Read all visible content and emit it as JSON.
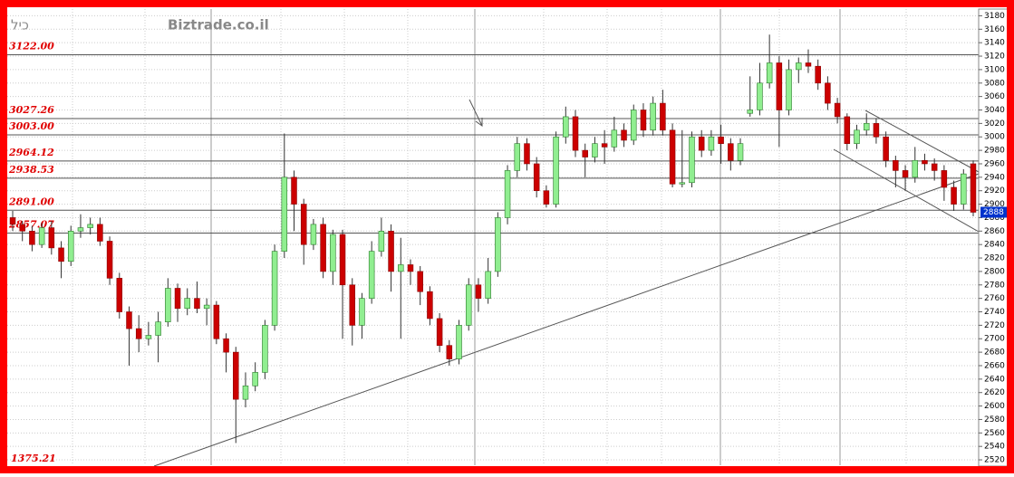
{
  "header": {
    "symbol": "כיל",
    "site": "Biztrade.co.il"
  },
  "chart_data": {
    "type": "candlestick",
    "ylim": [
      2512,
      3190
    ],
    "yticks": [
      2520,
      2540,
      2560,
      2580,
      2600,
      2620,
      2640,
      2660,
      2680,
      2700,
      2720,
      2740,
      2760,
      2780,
      2800,
      2820,
      2840,
      2860,
      2880,
      2900,
      2920,
      2940,
      2960,
      2980,
      3000,
      3020,
      3040,
      3060,
      3080,
      3100,
      3120,
      3140,
      3160,
      3180
    ],
    "grid": true,
    "up_color": "#90ee90",
    "down_color": "#cc0000",
    "levels": [
      {
        "value": 3122,
        "label": "3122.00"
      },
      {
        "value": 3027.26,
        "label": "3027.26"
      },
      {
        "value": 3003,
        "label": "3003.00"
      },
      {
        "value": 2964.12,
        "label": "2964.12"
      },
      {
        "value": 2938.53,
        "label": "2938.53"
      },
      {
        "value": 2891,
        "label": "2891.00"
      },
      {
        "value": 2857.07,
        "label": "2857.07"
      }
    ],
    "bottom_label": "1375.21",
    "last_price": 2888,
    "open": [
      2880,
      2870,
      2860,
      2840,
      2865,
      2835,
      2815,
      2860,
      2865,
      2870,
      2845,
      2790,
      2740,
      2715,
      2700,
      2705,
      2725,
      2775,
      2745,
      2760,
      2745,
      2750,
      2700,
      2680,
      2610,
      2630,
      2650,
      2720,
      2830,
      2940,
      2900,
      2840,
      2870,
      2800,
      2855,
      2780,
      2720,
      2760,
      2830,
      2860,
      2800,
      2810,
      2800,
      2770,
      2730,
      2690,
      2670,
      2720,
      2780,
      2760,
      2800,
      2880,
      2950,
      2990,
      2960,
      2920,
      2900,
      3000,
      3030,
      2980,
      2970,
      2990,
      2985,
      3010,
      2995,
      3040,
      3010,
      3050,
      3010,
      2930,
      2932,
      3000,
      2980,
      3000,
      2990,
      2965,
      3035,
      3040,
      3080,
      3110,
      3040,
      3100,
      3110,
      3105,
      3080,
      3050,
      3030,
      2990,
      3010,
      3020,
      3000,
      2965,
      2950,
      2940,
      2965,
      2960,
      2950,
      2925,
      2900,
      2960
    ],
    "high": [
      2890,
      2875,
      2868,
      2872,
      2875,
      2845,
      2868,
      2885,
      2880,
      2880,
      2852,
      2798,
      2748,
      2735,
      2725,
      2740,
      2790,
      2782,
      2775,
      2785,
      2760,
      2756,
      2708,
      2688,
      2650,
      2665,
      2728,
      2840,
      3005,
      2950,
      2908,
      2878,
      2880,
      2862,
      2862,
      2790,
      2768,
      2845,
      2880,
      2870,
      2850,
      2818,
      2808,
      2778,
      2738,
      2698,
      2728,
      2790,
      2790,
      2820,
      2888,
      2958,
      3000,
      2998,
      2970,
      2928,
      3008,
      3045,
      3040,
      2990,
      3000,
      3010,
      3030,
      3020,
      3048,
      3050,
      3060,
      3070,
      3020,
      3010,
      3008,
      3010,
      3010,
      3018,
      2998,
      2998,
      3090,
      3110,
      3152,
      3120,
      3115,
      3118,
      3130,
      3115,
      3090,
      3058,
      3035,
      3018,
      3035,
      3028,
      3008,
      2972,
      2958,
      2985,
      2975,
      2968,
      2958,
      2935,
      2952,
      2965
    ],
    "low": [
      2860,
      2845,
      2830,
      2835,
      2825,
      2790,
      2808,
      2850,
      2855,
      2838,
      2780,
      2730,
      2660,
      2680,
      2690,
      2665,
      2718,
      2725,
      2735,
      2738,
      2720,
      2692,
      2650,
      2545,
      2598,
      2622,
      2640,
      2712,
      2820,
      2860,
      2810,
      2832,
      2790,
      2780,
      2700,
      2690,
      2700,
      2752,
      2822,
      2770,
      2700,
      2780,
      2750,
      2720,
      2680,
      2660,
      2662,
      2712,
      2740,
      2752,
      2792,
      2870,
      2940,
      2950,
      2910,
      2895,
      2895,
      2990,
      2970,
      2940,
      2962,
      2960,
      2978,
      2985,
      2988,
      3000,
      3002,
      3002,
      2925,
      2925,
      2925,
      2970,
      2972,
      2960,
      2950,
      2958,
      3030,
      3032,
      3072,
      2985,
      3032,
      3080,
      3095,
      3070,
      3040,
      3020,
      2980,
      2982,
      3002,
      2990,
      2955,
      2925,
      2920,
      2932,
      2950,
      2935,
      2905,
      2890,
      2892,
      2882
    ],
    "close": [
      2870,
      2860,
      2840,
      2865,
      2835,
      2815,
      2860,
      2865,
      2870,
      2845,
      2790,
      2740,
      2715,
      2700,
      2705,
      2725,
      2775,
      2745,
      2760,
      2745,
      2750,
      2700,
      2680,
      2610,
      2630,
      2650,
      2720,
      2830,
      2940,
      2900,
      2840,
      2870,
      2800,
      2855,
      2780,
      2720,
      2760,
      2830,
      2860,
      2800,
      2810,
      2800,
      2770,
      2730,
      2690,
      2670,
      2720,
      2780,
      2760,
      2800,
      2880,
      2950,
      2990,
      2960,
      2920,
      2900,
      3000,
      3030,
      2980,
      2970,
      2990,
      2985,
      3010,
      2995,
      3040,
      3010,
      3050,
      3010,
      2930,
      2932,
      3000,
      2980,
      3000,
      2990,
      2965,
      2990,
      3040,
      3080,
      3110,
      3040,
      3100,
      3110,
      3105,
      3080,
      3050,
      3030,
      2990,
      3010,
      3020,
      3000,
      2965,
      2950,
      2940,
      2965,
      2960,
      2950,
      2925,
      2900,
      2945,
      2888
    ]
  }
}
